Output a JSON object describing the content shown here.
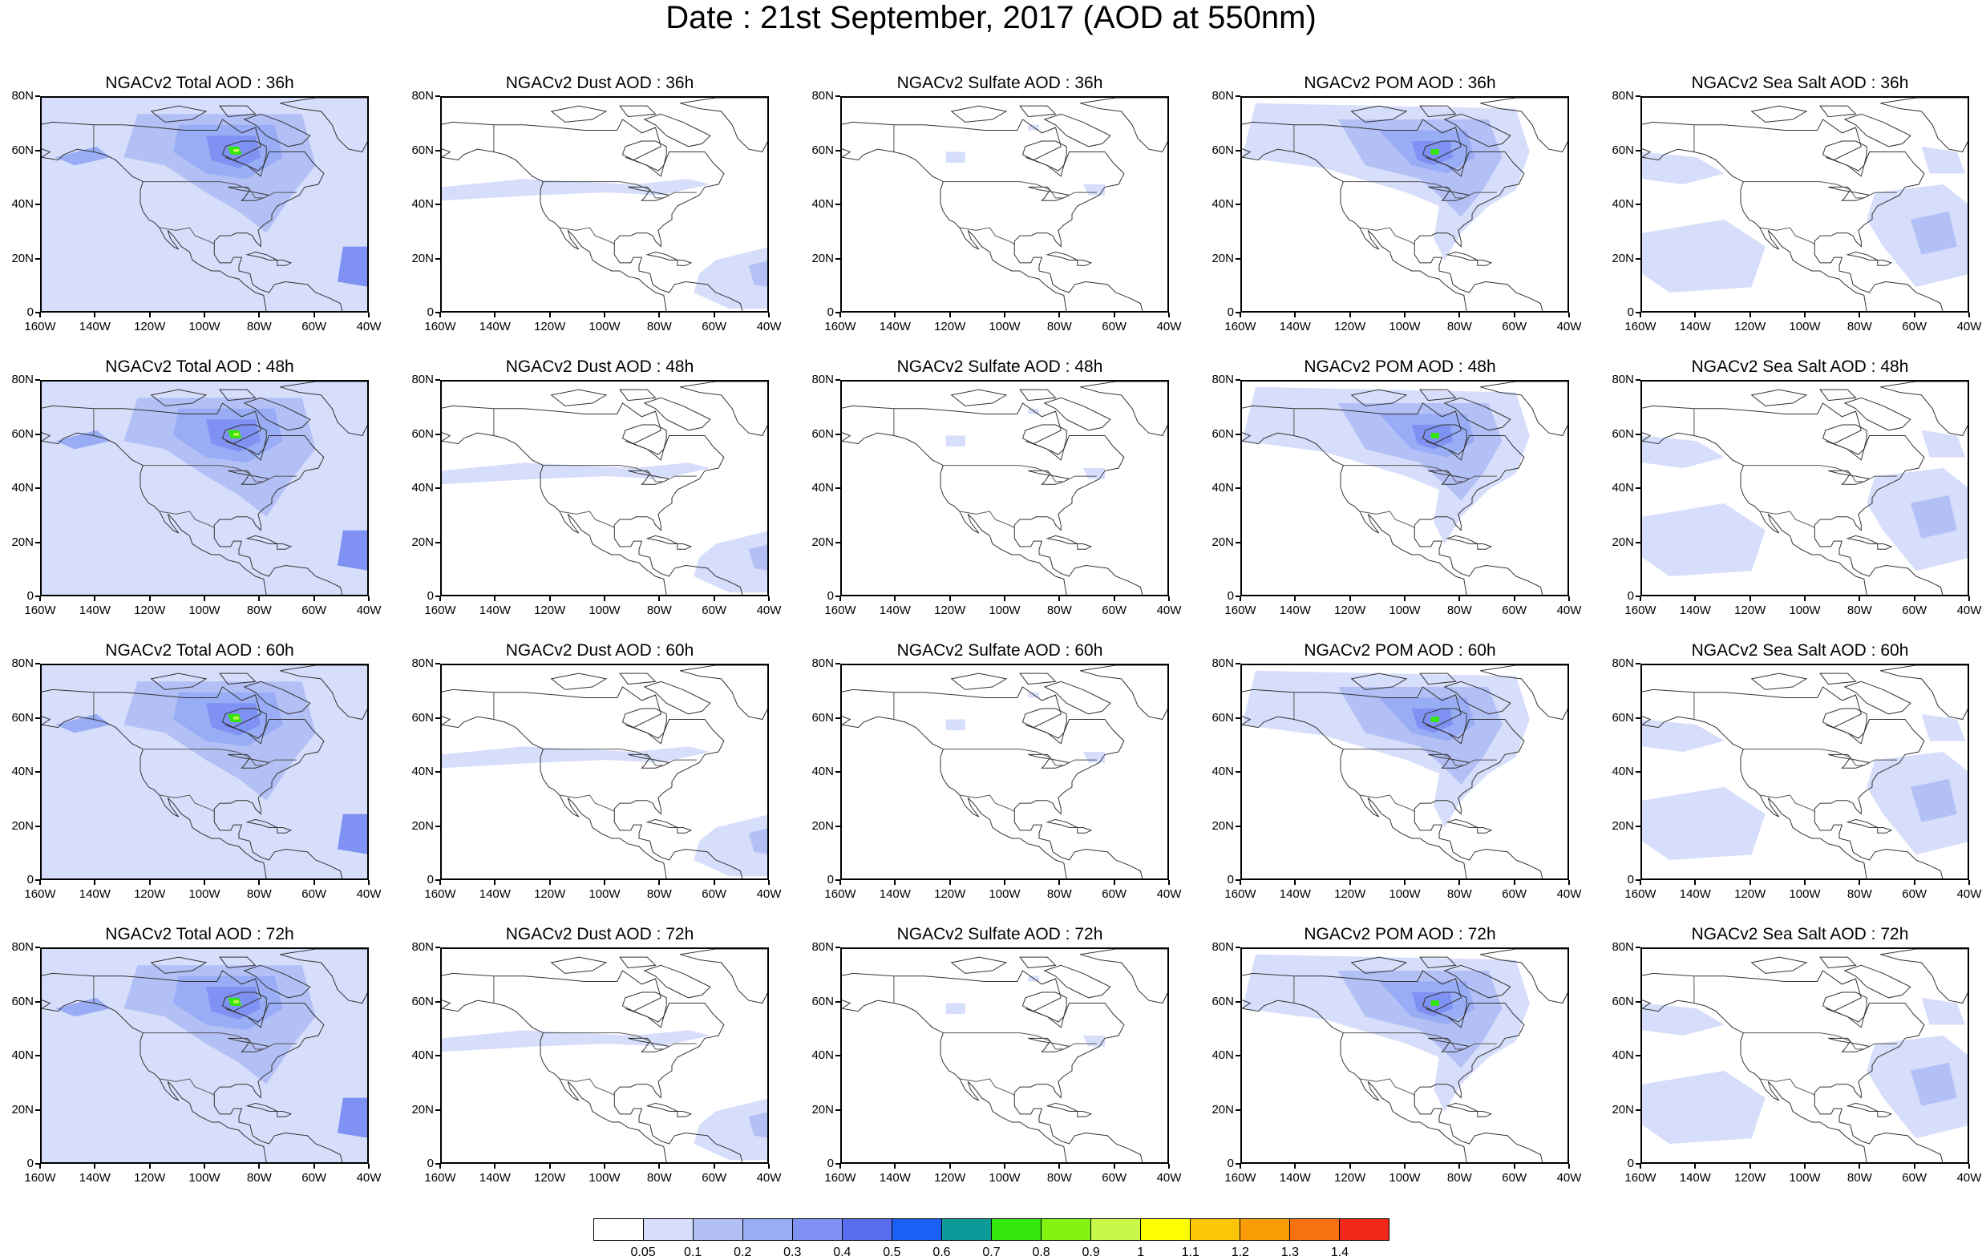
{
  "title": "Date : 21st September, 2017 (AOD at 550nm)",
  "map_axes": {
    "y_labels": [
      "80N",
      "60N",
      "40N",
      "20N",
      "0"
    ],
    "x_labels": [
      "160W",
      "140W",
      "120W",
      "100W",
      "80W",
      "60W",
      "40W"
    ],
    "lat_range": [
      0,
      80
    ],
    "lon_range": [
      -160,
      -40
    ]
  },
  "panels": [
    [
      {
        "title": "NGACv2 Total AOD : 36h",
        "type": "total"
      },
      {
        "title": "NGACv2 Dust AOD : 36h",
        "type": "dust"
      },
      {
        "title": "NGACv2 Sulfate AOD : 36h",
        "type": "sulfate"
      },
      {
        "title": "NGACv2 POM AOD : 36h",
        "type": "pom"
      },
      {
        "title": "NGACv2 Sea Salt AOD : 36h",
        "type": "seasalt"
      }
    ],
    [
      {
        "title": "NGACv2 Total AOD : 48h",
        "type": "total"
      },
      {
        "title": "NGACv2 Dust AOD : 48h",
        "type": "dust"
      },
      {
        "title": "NGACv2 Sulfate AOD : 48h",
        "type": "sulfate"
      },
      {
        "title": "NGACv2 POM AOD : 48h",
        "type": "pom"
      },
      {
        "title": "NGACv2 Sea Salt AOD : 48h",
        "type": "seasalt"
      }
    ],
    [
      {
        "title": "NGACv2 Total AOD : 60h",
        "type": "total"
      },
      {
        "title": "NGACv2 Dust AOD : 60h",
        "type": "dust"
      },
      {
        "title": "NGACv2 Sulfate AOD : 60h",
        "type": "sulfate"
      },
      {
        "title": "NGACv2 POM AOD : 60h",
        "type": "pom"
      },
      {
        "title": "NGACv2 Sea Salt AOD : 60h",
        "type": "seasalt"
      }
    ],
    [
      {
        "title": "NGACv2 Total AOD : 72h",
        "type": "total"
      },
      {
        "title": "NGACv2 Dust AOD : 72h",
        "type": "dust"
      },
      {
        "title": "NGACv2 Sulfate AOD : 72h",
        "type": "sulfate"
      },
      {
        "title": "NGACv2 POM AOD : 72h",
        "type": "pom"
      },
      {
        "title": "NGACv2 Sea Salt  AOD : 72h",
        "type": "seasalt"
      }
    ]
  ],
  "colorbar": {
    "labels": [
      "0.05",
      "0.1",
      "0.2",
      "0.3",
      "0.4",
      "0.5",
      "0.6",
      "0.7",
      "0.8",
      "0.9",
      "1",
      "1.1",
      "1.2",
      "1.3",
      "1.4"
    ],
    "colors": [
      "#ffffff",
      "#d6defb",
      "#b3c0f6",
      "#98adf6",
      "#7f91f2",
      "#5a6cef",
      "#1b60f5",
      "#0e9999",
      "#33e60c",
      "#85f312",
      "#c8f84a",
      "#fefe02",
      "#fcc508",
      "#fa9c05",
      "#f67210",
      "#f32818"
    ]
  }
}
